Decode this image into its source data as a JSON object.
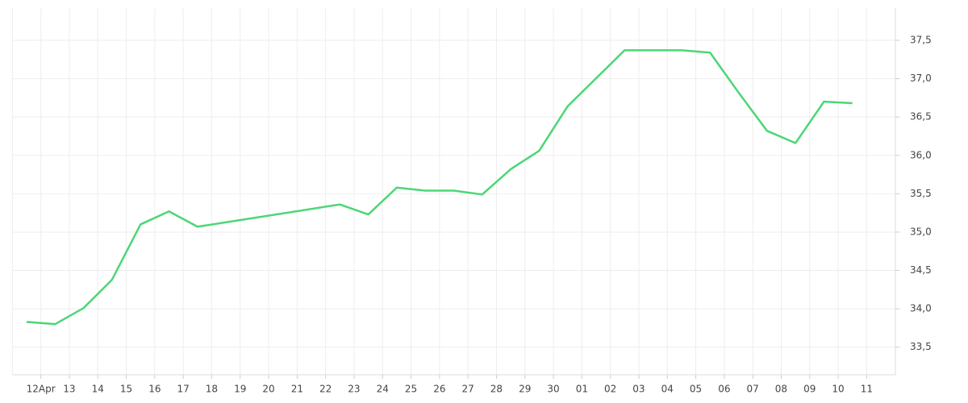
{
  "chart_data": {
    "type": "line",
    "categories": [
      "12Apr",
      "13",
      "14",
      "15",
      "16",
      "17",
      "18",
      "19",
      "20",
      "21",
      "22",
      "23",
      "24",
      "25",
      "26",
      "27",
      "28",
      "29",
      "30",
      "01",
      "02",
      "03",
      "04",
      "05",
      "06",
      "07",
      "08",
      "09",
      "10",
      "11"
    ],
    "series": [
      {
        "color": "#4cd676",
        "values": [
          33.83,
          33.8,
          34.01,
          34.38,
          35.1,
          35.27,
          35.07,
          null,
          null,
          null,
          null,
          35.36,
          35.23,
          35.58,
          35.54,
          35.54,
          35.49,
          35.82,
          36.06,
          36.64,
          null,
          37.37,
          null,
          37.37,
          37.34,
          36.82,
          36.32,
          36.16,
          36.7,
          36.68
        ]
      }
    ],
    "span_gaps": true,
    "ylim": [
      33.14,
      37.92
    ],
    "yticks": [
      {
        "value": 33.5,
        "label": "33,5"
      },
      {
        "value": 34,
        "label": "34,0"
      },
      {
        "value": 34.5,
        "label": "34,5"
      },
      {
        "value": 35,
        "label": "35,0"
      },
      {
        "value": 35.5,
        "label": "35,5"
      },
      {
        "value": 36,
        "label": "36,0"
      },
      {
        "value": 36.5,
        "label": "36,5"
      },
      {
        "value": 37,
        "label": "37,0"
      },
      {
        "value": 37.5,
        "label": "37,5"
      }
    ],
    "y_axis_side": "right",
    "grid": true
  }
}
